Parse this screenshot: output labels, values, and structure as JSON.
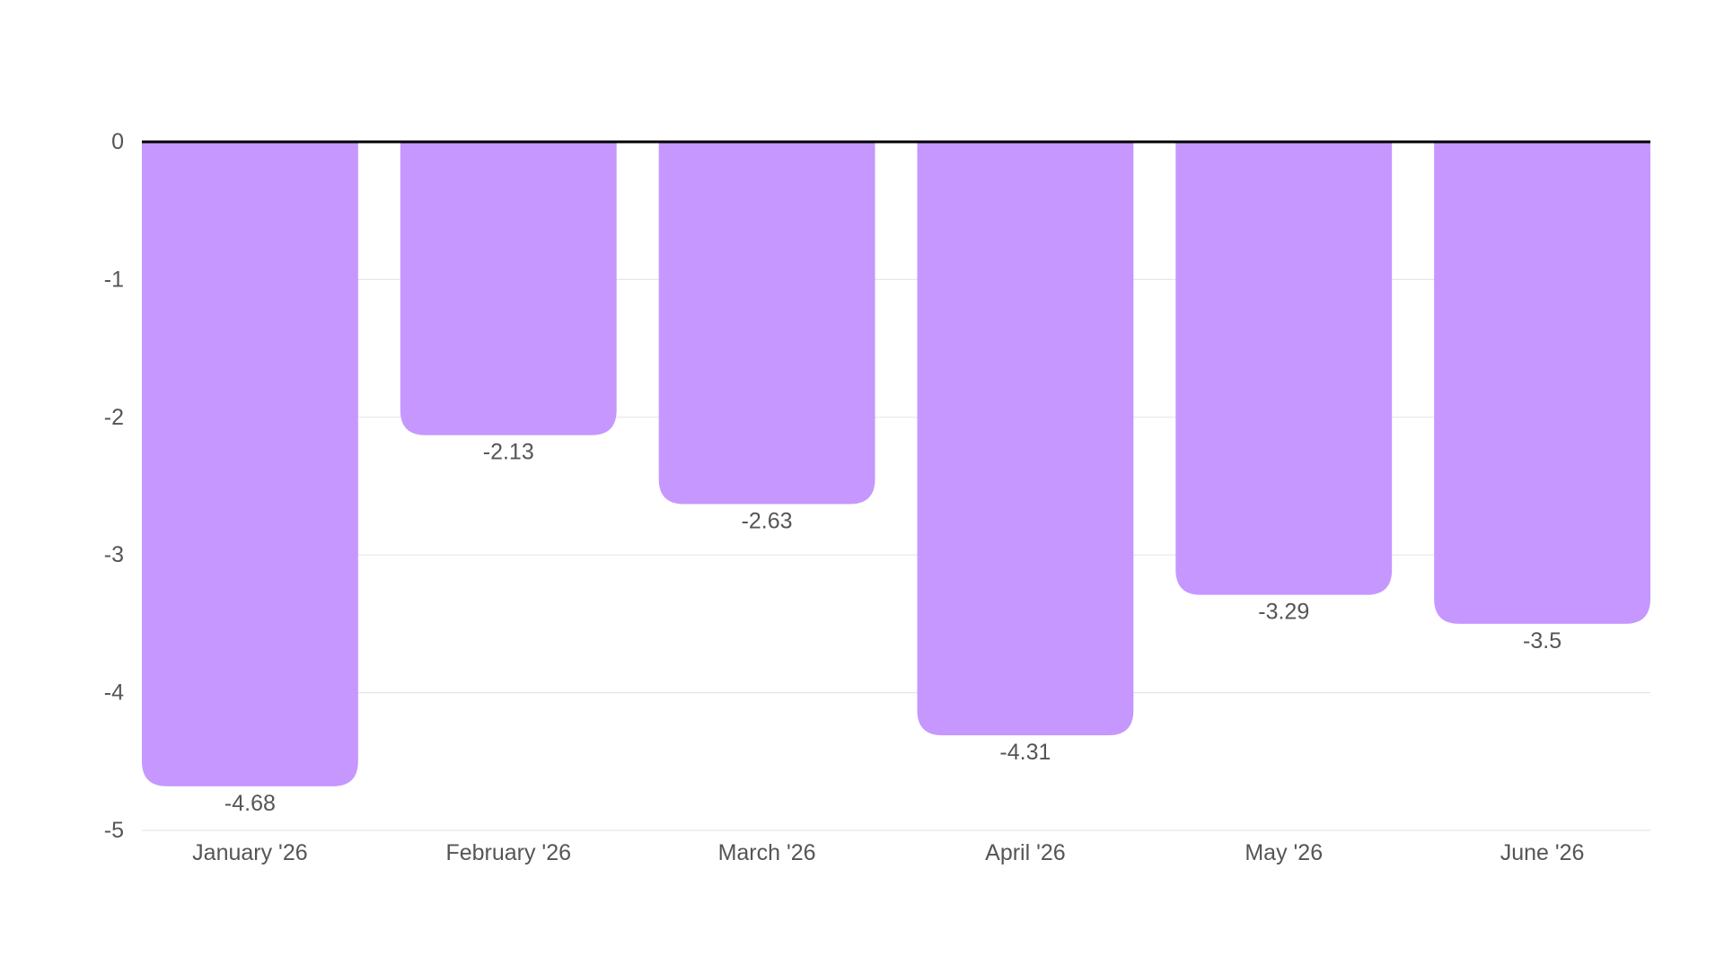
{
  "chart_data": {
    "type": "bar",
    "orientation": "vertical",
    "title": "",
    "xlabel": "",
    "ylabel": "",
    "categories": [
      "January '26",
      "February '26",
      "March '26",
      "April '26",
      "May '26",
      "June '26"
    ],
    "values": [
      -4.68,
      -2.13,
      -2.63,
      -4.31,
      -3.29,
      -3.5
    ],
    "data_labels": [
      "-4.68",
      "-2.13",
      "-2.63",
      "-4.31",
      "-3.29",
      "-3.5"
    ],
    "ylim": [
      -5,
      0
    ],
    "yticks": [
      0,
      -1,
      -2,
      -3,
      -4,
      -5
    ],
    "ytick_labels": [
      "0",
      "-1",
      "-2",
      "-3",
      "-4",
      "-5"
    ],
    "grid": true,
    "legend": "none",
    "colors": {
      "bar": "#c597ff",
      "zero_line": "#000000",
      "grid": "#e6e6e6",
      "text": "#555555"
    }
  }
}
